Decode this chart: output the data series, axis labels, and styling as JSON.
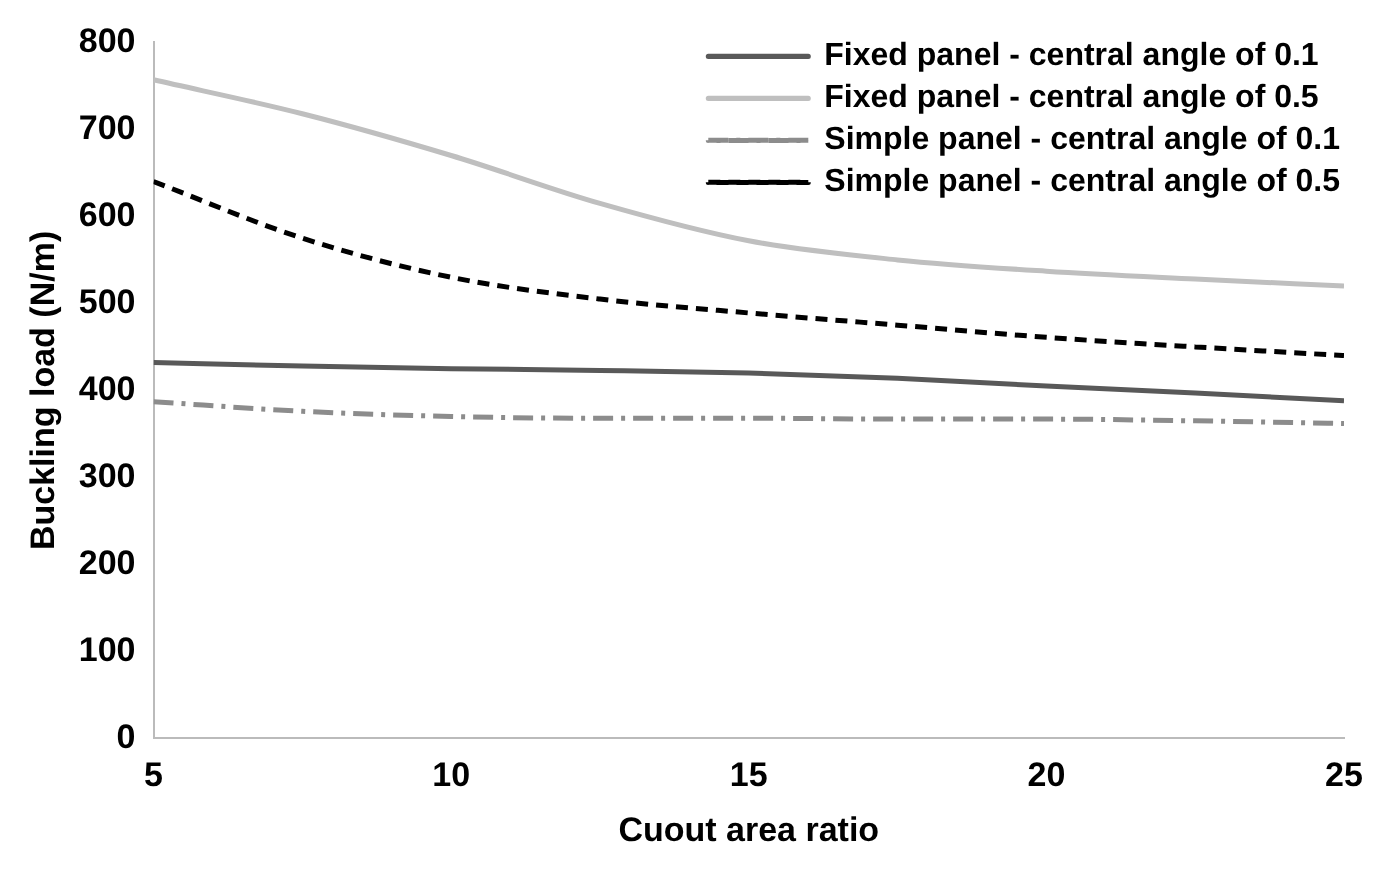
{
  "chart_data": {
    "type": "line",
    "xlabel": "Cuout area ratio",
    "ylabel": "Buckling load (N/m)",
    "x": [
      5,
      7.5,
      10,
      12.5,
      15,
      17.5,
      20,
      22.5,
      25
    ],
    "xlim": [
      5,
      25
    ],
    "xticks": [
      5,
      10,
      15,
      20,
      25
    ],
    "ylim": [
      0,
      800
    ],
    "yticks": [
      0,
      100,
      200,
      300,
      400,
      500,
      600,
      700,
      800
    ],
    "grid": false,
    "legend": "top right",
    "marker": "none",
    "series": [
      {
        "name": "Fixed panel - central angle of 0.1",
        "color": "#595959",
        "line_style": "solid",
        "values": [
          432,
          428,
          425,
          423,
          420,
          414,
          405,
          397,
          388
        ]
      },
      {
        "name": "Fixed panel - central angle of 0.5",
        "color": "#bfbfbf",
        "line_style": "solid",
        "values": [
          757,
          718,
          670,
          615,
          572,
          550,
          537,
          528,
          520
        ]
      },
      {
        "name": "Simple panel - central angle of 0.1",
        "color": "#8c8c8c",
        "line_style": "dashdot",
        "values": [
          387,
          376,
          370,
          368,
          368,
          367,
          367,
          365,
          362
        ]
      },
      {
        "name": "Simple panel - central angle of 0.5",
        "color": "#000000",
        "line_style": "dashed",
        "values": [
          640,
          575,
          530,
          505,
          489,
          475,
          461,
          450,
          440
        ]
      }
    ]
  }
}
